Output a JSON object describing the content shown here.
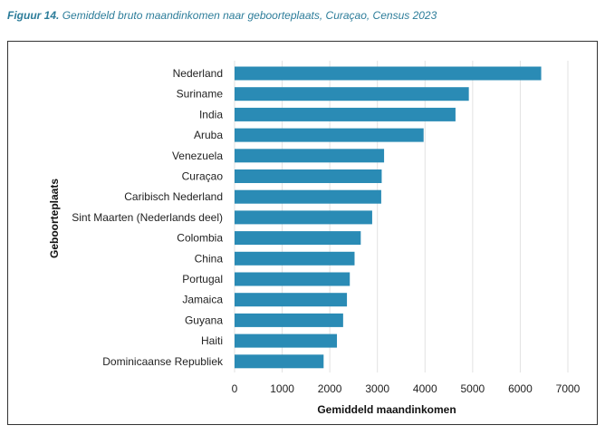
{
  "caption": {
    "label": "Figuur 14.",
    "text": "Gemiddeld bruto maandinkomen naar geboorteplaats, Curaçao, Census 2023"
  },
  "chart_data": {
    "type": "bar",
    "orientation": "horizontal",
    "title": "Gemiddeld bruto maandinkomen naar geboorteplaats, Curaçao, Census 2023",
    "xlabel": "Gemiddeld maandinkomen",
    "ylabel": "Geboorteplaats",
    "xlim": [
      0,
      7000
    ],
    "xticks": [
      "0",
      "1000",
      "2000",
      "3000",
      "4000",
      "5000",
      "6000",
      "7000"
    ],
    "grid": true,
    "bar_color": "#2a8bb5",
    "categories": [
      "Nederland",
      "Suriname",
      "India",
      "Aruba",
      "Venezuela",
      "Curaçao",
      "Caribisch Nederland",
      "Sint Maarten (Nederlands deel)",
      "Colombia",
      "China",
      "Portugal",
      "Jamaica",
      "Guyana",
      "Haiti",
      "Dominicaanse Republiek"
    ],
    "values": [
      6440,
      4920,
      4640,
      3970,
      3140,
      3090,
      3080,
      2890,
      2650,
      2520,
      2420,
      2360,
      2280,
      2150,
      1870
    ]
  }
}
